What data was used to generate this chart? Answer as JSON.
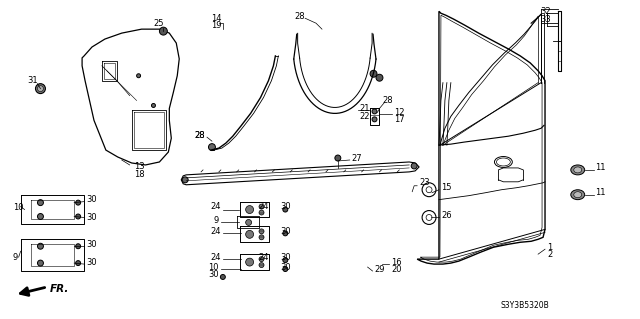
{
  "bg_color": "#ffffff",
  "line_color": "#000000",
  "gray_color": "#666666",
  "dark_gray": "#444444",
  "fs": 6.0,
  "diagram_code": "S3Y3B5320B"
}
